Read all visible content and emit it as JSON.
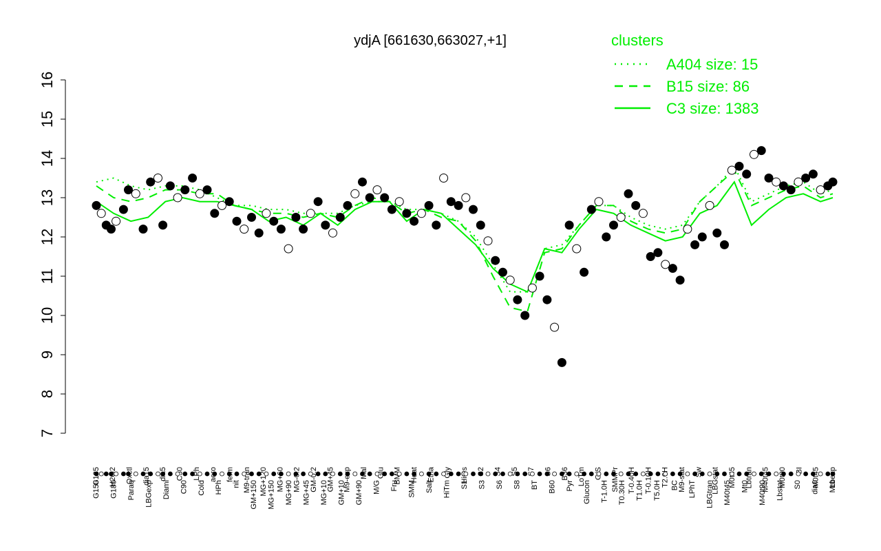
{
  "chart_data": {
    "type": "line",
    "title": "ydjA [661630,663027,+1]",
    "xlabel": "",
    "ylabel": "",
    "ylim": [
      7,
      16
    ],
    "yticks": [
      7,
      8,
      9,
      10,
      11,
      12,
      13,
      14,
      15,
      16
    ],
    "grid": false,
    "legend": {
      "title": "clusters",
      "placement": "top-right",
      "entries": [
        {
          "label": "A404 size: 15",
          "style": "dotted"
        },
        {
          "label": "B15 size: 86",
          "style": "dashed"
        },
        {
          "label": "C3 size: 1383",
          "style": "solid"
        }
      ]
    },
    "colors": {
      "series": "#00ee00",
      "points": "#000000",
      "point_fill_light": "#ffffff"
    },
    "x_tick_labels_top": [
      "G135",
      "H2O2",
      "Oxctl",
      "dia15",
      "dia5",
      "C30",
      "LPh",
      "aero",
      "ferm",
      "M9-tran",
      "MG+120",
      "MG+60",
      "MG-0.2",
      "GM-0.2",
      "GM+45",
      "M9-exp",
      "Mal",
      "Glu",
      "BMM",
      "Heat",
      "Etha",
      "Gly",
      "HiOs",
      "S2",
      "S4",
      "S5",
      "S7",
      "S6",
      "B36",
      "LoTm",
      "G/S",
      "SMMPr",
      "T-0.40H",
      "T-0.10H",
      "T2.0H",
      "M9-stat",
      "Sw",
      "LBGstat",
      "M0t45",
      "Lbtran",
      "M40t45",
      "M0t90",
      "BI",
      "M0t45",
      "Lbexp"
    ],
    "x_tick_labels_bottom": [
      "G150",
      "G180",
      "Paraq",
      "LBGexp",
      "Diami",
      "C90",
      "Cold",
      "HPh",
      "nit",
      "GM+150",
      "MG+150",
      "MG+90",
      "MG+45",
      "MG+10",
      "GM+10",
      "GM+90",
      "M/G",
      "Fru",
      "SMM",
      "Salt",
      "HiTm",
      "S1",
      "S3",
      "S6",
      "S8",
      "BT",
      "B60",
      "Pyr",
      "Glucon",
      "T-1.0H",
      "T0.30H",
      "T1.0H",
      "T5.0H",
      "BC",
      "LPhT",
      "LBGtran",
      "M40t45",
      "Mt0",
      "M40t90",
      "Lbstat",
      "S0",
      "dia0",
      "Mt0"
    ],
    "series": [
      {
        "name": "C3 size: 1383",
        "style": "solid",
        "x": [
          1,
          8,
          15,
          22,
          29,
          36,
          43,
          50,
          57,
          64,
          71,
          78,
          85,
          92,
          99,
          106,
          113,
          120,
          127,
          134,
          141,
          148,
          155,
          162,
          169,
          176,
          183,
          190,
          197,
          204,
          211,
          218,
          225,
          232,
          239,
          246,
          253,
          260,
          267,
          274,
          281,
          288,
          295,
          300
        ],
        "values": [
          12.9,
          12.6,
          12.4,
          12.5,
          12.9,
          13.0,
          12.9,
          12.9,
          12.8,
          12.7,
          12.4,
          12.5,
          12.3,
          12.6,
          12.3,
          12.7,
          12.9,
          12.9,
          12.4,
          12.7,
          12.6,
          12.2,
          11.8,
          11.2,
          10.8,
          10.6,
          11.7,
          11.6,
          12.2,
          12.7,
          12.6,
          12.3,
          12.1,
          11.9,
          12.0,
          12.6,
          12.8,
          13.4,
          12.3,
          12.7,
          13.0,
          13.1,
          12.9,
          13.0
        ]
      },
      {
        "name": "B15 size: 86",
        "style": "dashed",
        "x": [
          1,
          8,
          15,
          22,
          29,
          36,
          43,
          50,
          57,
          64,
          71,
          78,
          85,
          92,
          99,
          106,
          113,
          120,
          127,
          134,
          141,
          148,
          155,
          162,
          169,
          176,
          183,
          190,
          197,
          204,
          211,
          218,
          225,
          232,
          239,
          246,
          253,
          260,
          267,
          274,
          281,
          288,
          295,
          300
        ],
        "values": [
          13.3,
          13.0,
          12.9,
          13.0,
          13.2,
          13.2,
          13.1,
          13.1,
          12.8,
          12.7,
          12.6,
          12.6,
          12.5,
          12.6,
          12.5,
          12.8,
          13.0,
          12.9,
          12.6,
          12.7,
          12.5,
          12.4,
          11.9,
          11.0,
          10.2,
          10.1,
          11.6,
          11.7,
          12.3,
          12.8,
          12.8,
          12.4,
          12.2,
          12.1,
          12.2,
          12.9,
          13.3,
          13.7,
          12.8,
          13.0,
          13.2,
          13.3,
          13.0,
          13.1
        ]
      },
      {
        "name": "A404 size: 15",
        "style": "dotted",
        "x": [
          1,
          8,
          15,
          22,
          29,
          36,
          43,
          50,
          57,
          64,
          71,
          78,
          85,
          92,
          99,
          106,
          113,
          120,
          127,
          134,
          141,
          148,
          155,
          162,
          169,
          176,
          183,
          190,
          197,
          204,
          211,
          218,
          225,
          232,
          239,
          246,
          253,
          260,
          267,
          274,
          281,
          288,
          295,
          300
        ],
        "values": [
          13.4,
          13.5,
          13.3,
          13.2,
          13.3,
          13.3,
          13.2,
          13.0,
          12.8,
          12.8,
          12.7,
          12.7,
          12.6,
          12.6,
          12.6,
          12.8,
          12.9,
          12.9,
          12.7,
          12.7,
          12.6,
          12.4,
          12.0,
          11.3,
          10.6,
          10.6,
          11.7,
          11.8,
          12.3,
          12.8,
          12.8,
          12.5,
          12.3,
          12.2,
          12.3,
          12.9,
          13.3,
          13.8,
          12.9,
          13.1,
          13.3,
          13.4,
          13.1,
          13.2
        ]
      }
    ],
    "points": {
      "x": [
        1,
        3,
        5,
        7,
        9,
        12,
        14,
        17,
        20,
        23,
        26,
        28,
        31,
        34,
        37,
        40,
        43,
        46,
        49,
        52,
        55,
        58,
        61,
        64,
        67,
        70,
        73,
        76,
        79,
        82,
        85,
        88,
        91,
        94,
        97,
        100,
        103,
        106,
        109,
        112,
        115,
        118,
        121,
        124,
        127,
        130,
        133,
        136,
        139,
        142,
        145,
        148,
        151,
        154,
        157,
        160,
        163,
        166,
        169,
        172,
        175,
        178,
        181,
        184,
        187,
        190,
        193,
        196,
        199,
        202,
        205,
        208,
        211,
        214,
        217,
        220,
        223,
        226,
        229,
        232,
        235,
        238,
        241,
        244,
        247,
        250,
        253,
        256,
        259,
        262,
        265,
        268,
        271,
        274,
        277,
        280,
        283,
        286,
        289,
        292,
        295,
        298,
        300
      ],
      "values": [
        12.8,
        12.6,
        12.3,
        12.2,
        12.4,
        12.7,
        13.2,
        13.1,
        12.2,
        13.4,
        13.5,
        12.3,
        13.3,
        13.0,
        13.2,
        13.5,
        13.1,
        13.2,
        12.6,
        12.8,
        12.9,
        12.4,
        12.2,
        12.5,
        12.1,
        12.6,
        12.4,
        12.2,
        11.7,
        12.5,
        12.2,
        12.6,
        12.9,
        12.3,
        12.1,
        12.5,
        12.8,
        13.1,
        13.4,
        13.0,
        13.2,
        13.0,
        12.7,
        12.9,
        12.6,
        12.4,
        12.6,
        12.8,
        12.3,
        13.5,
        12.9,
        12.8,
        13.0,
        12.7,
        12.3,
        11.9,
        11.4,
        11.1,
        10.9,
        10.4,
        10.0,
        10.7,
        11.0,
        10.4,
        9.7,
        8.8,
        12.3,
        11.7,
        11.1,
        12.7,
        12.9,
        12.0,
        12.3,
        12.5,
        13.1,
        12.8,
        12.6,
        11.5,
        11.6,
        11.3,
        11.2,
        10.9,
        12.2,
        11.8,
        12.0,
        12.8,
        12.1,
        11.8,
        13.7,
        13.8,
        13.6,
        14.1,
        14.2,
        13.5,
        13.4,
        13.3,
        13.2,
        13.4,
        13.5,
        13.6,
        13.2,
        13.3,
        13.4
      ]
    }
  }
}
